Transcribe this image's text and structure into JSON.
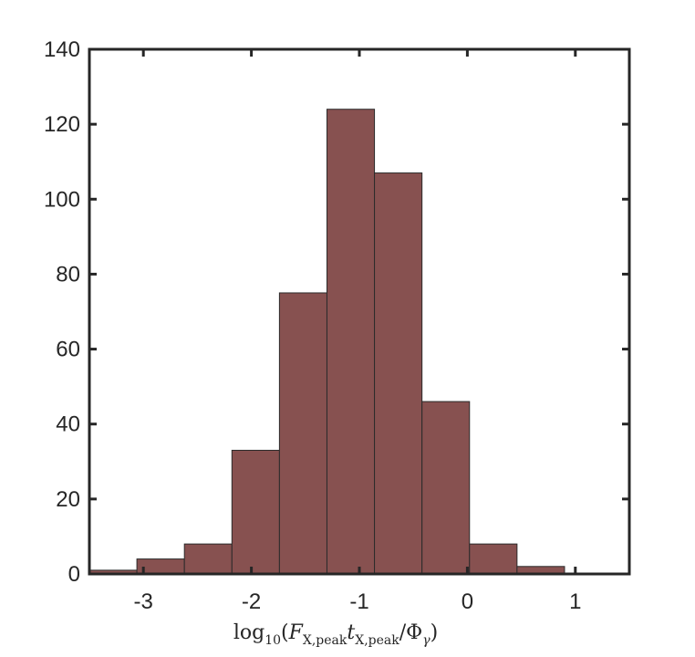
{
  "chart_data": {
    "type": "bar",
    "subtype": "histogram",
    "bin_edges": [
      -3.5,
      -3.06,
      -2.62,
      -2.18,
      -1.74,
      -1.3,
      -0.86,
      -0.42,
      0.02,
      0.46,
      0.9
    ],
    "values": [
      1,
      4,
      8,
      33,
      75,
      124,
      107,
      46,
      8,
      2
    ],
    "xlim": [
      -3.5,
      1.5
    ],
    "ylim": [
      0,
      140
    ],
    "xticks": [
      -3,
      -2,
      -1,
      0,
      1
    ],
    "yticks": [
      0,
      20,
      40,
      60,
      80,
      100,
      120,
      140
    ],
    "xtick_labels": [
      "-3",
      "-2",
      "-1",
      "0",
      "1"
    ],
    "ytick_labels": [
      "0",
      "20",
      "40",
      "60",
      "80",
      "100",
      "120",
      "140"
    ],
    "title": "",
    "xlabel": {
      "prefix": "log",
      "prefix_sub": "10",
      "open": "(",
      "f_var": "F",
      "f_sub": "X,peak",
      "t_var": "t",
      "t_sub": "X,peak",
      "slash": "/",
      "phi": "Φ",
      "phi_sub": "γ",
      "close": ")"
    },
    "ylabel": "",
    "bar_color": "#875150",
    "grid": false,
    "box": true
  }
}
